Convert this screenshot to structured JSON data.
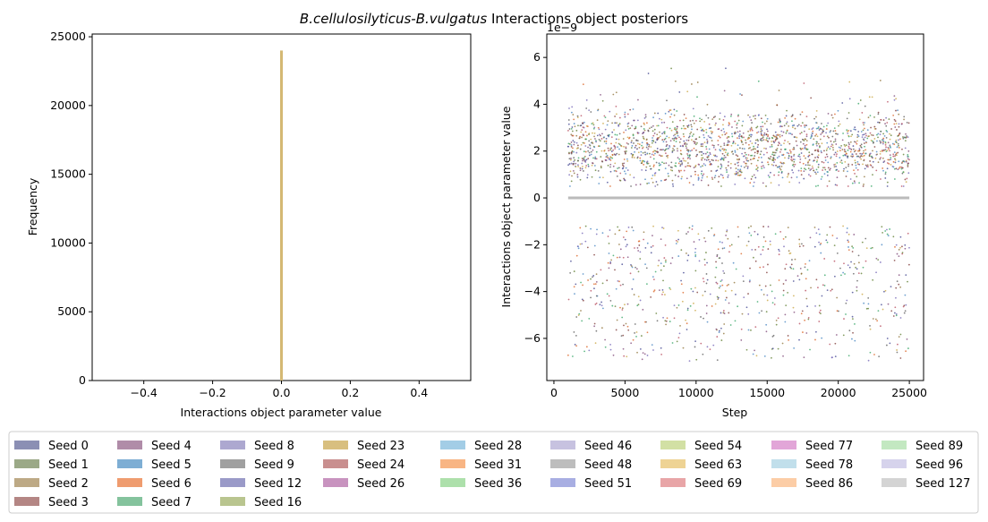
{
  "figure": {
    "title_italic": "B.cellulosilyticus-B.vulgatus",
    "title_rest": " Interactions object posteriors"
  },
  "chart_data": [
    {
      "type": "bar",
      "subtype": "histogram",
      "xlabel": "Interactions object parameter value",
      "ylabel": "Frequency",
      "xlim": [
        -0.55,
        0.55
      ],
      "ylim": [
        0,
        25200
      ],
      "xticks": [
        "−0.4",
        "−0.2",
        "0.0",
        "0.2",
        "0.4"
      ],
      "xtick_values": [
        -0.4,
        -0.2,
        0.0,
        0.2,
        0.4
      ],
      "yticks": [
        "0",
        "5000",
        "10000",
        "15000",
        "20000",
        "25000"
      ],
      "ytick_values": [
        0,
        5000,
        10000,
        15000,
        20000,
        25000
      ],
      "bins": [
        {
          "center": 0.0,
          "count": 24000
        }
      ],
      "color": "#d4b873"
    },
    {
      "type": "scatter",
      "xlabel": "Step",
      "ylabel": "Interactions object parameter value",
      "offset_text": "1e−9",
      "xlim": [
        -500,
        26000
      ],
      "ylim": [
        -7.8,
        7.0
      ],
      "xticks": [
        "0",
        "5000",
        "10000",
        "15000",
        "20000",
        "25000"
      ],
      "xtick_values": [
        0,
        5000,
        10000,
        15000,
        20000,
        25000
      ],
      "yticks": [
        "−6",
        "−4",
        "−2",
        "0",
        "2",
        "4",
        "6"
      ],
      "ytick_values": [
        -6,
        -4,
        -2,
        0,
        2,
        4,
        6
      ],
      "zero_line": {
        "x": [
          1000,
          25000
        ],
        "y": 0,
        "color": "#bbbbbb"
      },
      "scatter_ranges": {
        "x": [
          1000,
          25000
        ],
        "positive_band": [
          0.5,
          6.3
        ],
        "negative_band": [
          -7.0,
          -1.2
        ]
      }
    }
  ],
  "legend": {
    "items": [
      {
        "label": "Seed 0",
        "color": "#8b8fb4"
      },
      {
        "label": "Seed 1",
        "color": "#9ba987"
      },
      {
        "label": "Seed 2",
        "color": "#bda985"
      },
      {
        "label": "Seed 3",
        "color": "#b48684"
      },
      {
        "label": "Seed 4",
        "color": "#b08ca8"
      },
      {
        "label": "Seed 5",
        "color": "#7eaed4"
      },
      {
        "label": "Seed 6",
        "color": "#ef9c6f"
      },
      {
        "label": "Seed 7",
        "color": "#84c39d"
      },
      {
        "label": "Seed 8",
        "color": "#ada8d0"
      },
      {
        "label": "Seed 9",
        "color": "#a0a0a0"
      },
      {
        "label": "Seed 12",
        "color": "#9a9ac8"
      },
      {
        "label": "Seed 16",
        "color": "#b9c58f"
      },
      {
        "label": "Seed 23",
        "color": "#d8bf7f"
      },
      {
        "label": "Seed 24",
        "color": "#c98f8f"
      },
      {
        "label": "Seed 26",
        "color": "#c893bf"
      },
      {
        "label": "Seed 28",
        "color": "#a3cde6"
      },
      {
        "label": "Seed 31",
        "color": "#f8b584"
      },
      {
        "label": "Seed 36",
        "color": "#ade0ab"
      },
      {
        "label": "Seed 46",
        "color": "#c7c2e0"
      },
      {
        "label": "Seed 48",
        "color": "#bdbdbd"
      },
      {
        "label": "Seed 51",
        "color": "#a8aee2"
      },
      {
        "label": "Seed 54",
        "color": "#d2e0a4"
      },
      {
        "label": "Seed 63",
        "color": "#eed394"
      },
      {
        "label": "Seed 69",
        "color": "#e8a5a7"
      },
      {
        "label": "Seed 77",
        "color": "#e2a6d8"
      },
      {
        "label": "Seed 78",
        "color": "#c1dfeb"
      },
      {
        "label": "Seed 86",
        "color": "#fccda6"
      },
      {
        "label": "Seed 89",
        "color": "#c3e8c1"
      },
      {
        "label": "Seed 96",
        "color": "#d6d3ec"
      },
      {
        "label": "Seed 127",
        "color": "#d4d4d4"
      }
    ],
    "scatter_palette": [
      "#3b3f8c",
      "#5a7a2a",
      "#8b6d31",
      "#7a3330",
      "#7b4173",
      "#3e7fbf",
      "#d95f1e",
      "#2ca25f",
      "#6d5fb3",
      "#555555",
      "#b5475a",
      "#c7a23a"
    ]
  }
}
